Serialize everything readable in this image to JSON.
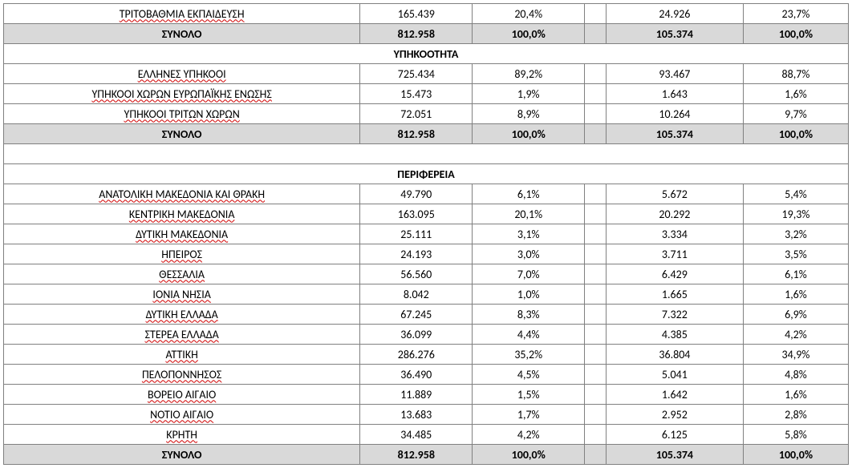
{
  "columns": {
    "widths": [
      400,
      126,
      126,
      24,
      154,
      118
    ],
    "align": [
      "center",
      "center",
      "center",
      "center",
      "center",
      "center"
    ]
  },
  "colors": {
    "border": "#808080",
    "total_bg": "#d9d9d9",
    "bg": "#ffffff",
    "text": "#000000",
    "spell_underline": "#d00000"
  },
  "typography": {
    "font_family": "Calibri, Arial, sans-serif",
    "font_size_pt": 11,
    "bold_rows": "totals+section headers"
  },
  "pre_rows": [
    {
      "label": "ΤΡΙΤΟΒΑΘΜΙΑ ΕΚΠΑΙΔΕΥΣΗ",
      "v1": "165.439",
      "p1": "20,4%",
      "v2": "24.926",
      "p2": "23,7%",
      "spell": true
    }
  ],
  "pre_total": {
    "label": "ΣΥΝΟΛΟ",
    "v1": "812.958",
    "p1": "100,0%",
    "v2": "105.374",
    "p2": "100,0%"
  },
  "sections": [
    {
      "title": "ΥΠΗΚΟΟΤΗΤΑ",
      "rows": [
        {
          "label": "ΕΛΛΗΝΕΣ ΥΠΗΚΟΟΙ",
          "v1": "725.434",
          "p1": "89,2%",
          "v2": "93.467",
          "p2": "88,7%",
          "spell": true
        },
        {
          "label": "ΥΠΗΚΟΟΙ ΧΩΡΩΝ ΕΥΡΩΠΑΪΚΗΣ ΕΝΩΣΗΣ",
          "v1": "15.473",
          "p1": "1,9%",
          "v2": "1.643",
          "p2": "1,6%",
          "spell": true
        },
        {
          "label": "ΥΠΗΚΟΟΙ ΤΡΙΤΩΝ ΧΩΡΩΝ",
          "v1": "72.051",
          "p1": "8,9%",
          "v2": "10.264",
          "p2": "9,7%",
          "spell": true
        }
      ],
      "total": {
        "label": "ΣΥΝΟΛΟ",
        "v1": "812.958",
        "p1": "100,0%",
        "v2": "105.374",
        "p2": "100,0%"
      },
      "blank_after": true
    },
    {
      "title": "ΠΕΡΙΦΕΡΕΙΑ",
      "rows": [
        {
          "label": "ΑΝΑΤΟΛΙΚΗ ΜΑΚΕΔΟΝΙΑ ΚΑΙ ΘΡΑΚΗ",
          "v1": "49.790",
          "p1": "6,1%",
          "v2": "5.672",
          "p2": "5,4%",
          "spell": true
        },
        {
          "label": "ΚΕΝΤΡΙΚΗ ΜΑΚΕΔΟΝΙΑ",
          "v1": "163.095",
          "p1": "20,1%",
          "v2": "20.292",
          "p2": "19,3%",
          "spell": true
        },
        {
          "label": "ΔΥΤΙΚΗ ΜΑΚΕΔΟΝΙΑ",
          "v1": "25.111",
          "p1": "3,1%",
          "v2": "3.334",
          "p2": "3,2%",
          "spell": true
        },
        {
          "label": "ΗΠΕΙΡΟΣ",
          "v1": "24.193",
          "p1": "3,0%",
          "v2": "3.711",
          "p2": "3,5%",
          "spell": true
        },
        {
          "label": "ΘΕΣΣΑΛΙΑ",
          "v1": "56.560",
          "p1": "7,0%",
          "v2": "6.429",
          "p2": "6,1%",
          "spell": true
        },
        {
          "label": "ΙΟΝΙΑ ΝΗΣΙΑ",
          "v1": "8.042",
          "p1": "1,0%",
          "v2": "1.665",
          "p2": "1,6%",
          "spell": true
        },
        {
          "label": "ΔΥΤΙΚΗ ΕΛΛΑΔΑ",
          "v1": "67.245",
          "p1": "8,3%",
          "v2": "7.322",
          "p2": "6,9%",
          "spell": true
        },
        {
          "label": "ΣΤΕΡΕΑ ΕΛΛΑΔΑ",
          "v1": "36.099",
          "p1": "4,4%",
          "v2": "4.385",
          "p2": "4,2%",
          "spell": true
        },
        {
          "label": "ΑΤΤΙΚΗ",
          "v1": "286.276",
          "p1": "35,2%",
          "v2": "36.804",
          "p2": "34,9%",
          "spell": true
        },
        {
          "label": "ΠΕΛΟΠΟΝΝΗΣΟΣ",
          "v1": "36.490",
          "p1": "4,5%",
          "v2": "5.041",
          "p2": "4,8%",
          "spell": true
        },
        {
          "label": "ΒΟΡΕΙΟ ΑΙΓΑΙΟ",
          "v1": "11.889",
          "p1": "1,5%",
          "v2": "1.642",
          "p2": "1,6%",
          "spell": true
        },
        {
          "label": "ΝΟΤΙΟ ΑΙΓΑΙΟ",
          "v1": "13.683",
          "p1": "1,7%",
          "v2": "2.952",
          "p2": "2,8%",
          "spell": true
        },
        {
          "label": "ΚΡΗΤΗ",
          "v1": "34.485",
          "p1": "4,2%",
          "v2": "6.125",
          "p2": "5,8%",
          "spell": true
        }
      ],
      "total": {
        "label": "ΣΥΝΟΛΟ",
        "v1": "812.958",
        "p1": "100,0%",
        "v2": "105.374",
        "p2": "100,0%"
      },
      "blank_after": false
    }
  ]
}
